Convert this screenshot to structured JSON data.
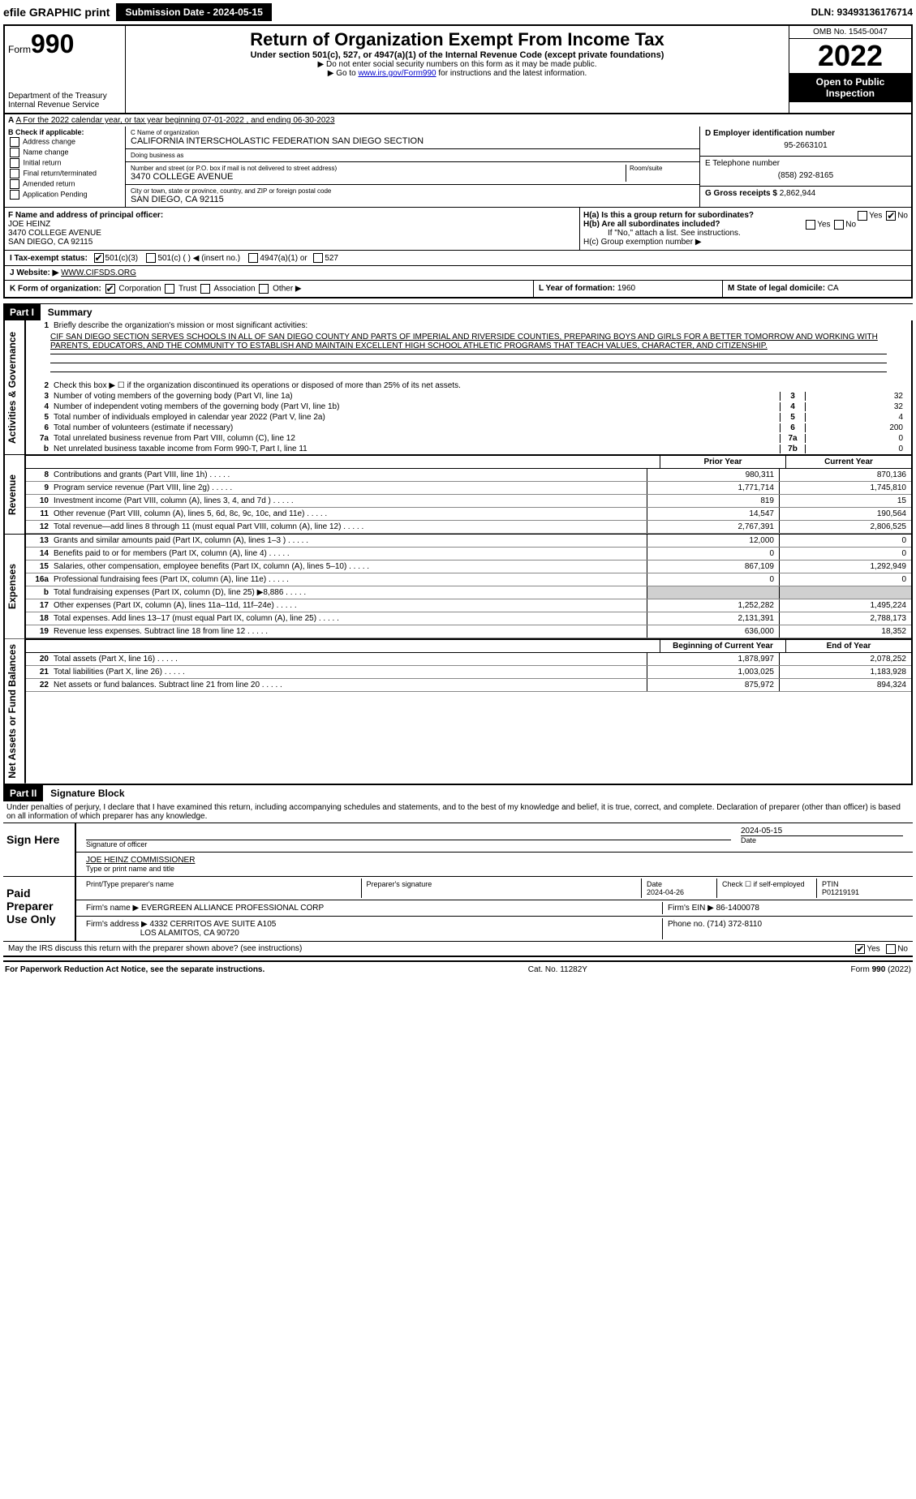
{
  "top": {
    "efile": "efile GRAPHIC print",
    "submission": "Submission Date - 2024-05-15",
    "dln": "DLN: 93493136176714"
  },
  "header": {
    "form": "Form",
    "formNum": "990",
    "dept": "Department of the Treasury Internal Revenue Service",
    "title": "Return of Organization Exempt From Income Tax",
    "sub": "Under section 501(c), 527, or 4947(a)(1) of the Internal Revenue Code (except private foundations)",
    "note1": "▶ Do not enter social security numbers on this form as it may be made public.",
    "note2": "▶ Go to www.irs.gov/Form990 for instructions and the latest information.",
    "irsLink": "www.irs.gov/Form990",
    "omb": "OMB No. 1545-0047",
    "year": "2022",
    "inspect": "Open to Public Inspection"
  },
  "a": {
    "text": "A For the 2022 calendar year, or tax year beginning 07-01-2022   , and ending 06-30-2023"
  },
  "b": {
    "label": "B Check if applicable:",
    "opts": [
      "Address change",
      "Name change",
      "Initial return",
      "Final return/terminated",
      "Amended return",
      "Application Pending"
    ]
  },
  "c": {
    "nameLbl": "C Name of organization",
    "name": "CALIFORNIA INTERSCHOLASTIC FEDERATION SAN DIEGO SECTION",
    "dbaLbl": "Doing business as",
    "dba": "",
    "streetLbl": "Number and street (or P.O. box if mail is not delivered to street address)",
    "street": "3470 COLLEGE AVENUE",
    "roomLbl": "Room/suite",
    "cityLbl": "City or town, state or province, country, and ZIP or foreign postal code",
    "city": "SAN DIEGO, CA  92115"
  },
  "d": {
    "lbl": "D Employer identification number",
    "val": "95-2663101"
  },
  "e": {
    "lbl": "E Telephone number",
    "val": "(858) 292-8165"
  },
  "g": {
    "lbl": "G Gross receipts $",
    "val": "2,862,944"
  },
  "f": {
    "lbl": "F Name and address of principal officer:",
    "name": "JOE HEINZ",
    "addr1": "3470 COLLEGE AVENUE",
    "addr2": "SAN DIEGO, CA  92115"
  },
  "h": {
    "a": "H(a)  Is this a group return for subordinates?",
    "b": "H(b)  Are all subordinates included?",
    "bnote": "If \"No,\" attach a list. See instructions.",
    "c": "H(c)  Group exemption number ▶",
    "yes": "Yes",
    "no": "No"
  },
  "i": {
    "lbl": "I  Tax-exempt status:",
    "o1": "501(c)(3)",
    "o2": "501(c) (  ) ◀ (insert no.)",
    "o3": "4947(a)(1) or",
    "o4": "527"
  },
  "j": {
    "lbl": "J  Website: ▶",
    "val": "WWW.CIFSDS.ORG"
  },
  "k": {
    "lbl": "K Form of organization:",
    "o1": "Corporation",
    "o2": "Trust",
    "o3": "Association",
    "o4": "Other ▶"
  },
  "l": {
    "lbl": "L Year of formation:",
    "val": "1960"
  },
  "m": {
    "lbl": "M State of legal domicile:",
    "val": "CA"
  },
  "parts": {
    "p1": "Part I",
    "p1t": "Summary",
    "p2": "Part II",
    "p2t": "Signature Block"
  },
  "vtabs": {
    "ag": "Activities & Governance",
    "rev": "Revenue",
    "exp": "Expenses",
    "net": "Net Assets or Fund Balances"
  },
  "summary": {
    "l1": "Briefly describe the organization's mission or most significant activities:",
    "mission": "CIF SAN DIEGO SECTION SERVES SCHOOLS IN ALL OF SAN DIEGO COUNTY AND PARTS OF IMPERIAL AND RIVERSIDE COUNTIES, PREPARING BOYS AND GIRLS FOR A BETTER TOMORROW AND WORKING WITH PARENTS, EDUCATORS, AND THE COMMUNITY TO ESTABLISH AND MAINTAIN EXCELLENT HIGH SCHOOL ATHLETIC PROGRAMS THAT TEACH VALUES, CHARACTER, AND CITIZENSHIP.",
    "l2": "Check this box ▶ ☐ if the organization discontinued its operations or disposed of more than 25% of its net assets.",
    "l3": "Number of voting members of the governing body (Part VI, line 1a)",
    "l4": "Number of independent voting members of the governing body (Part VI, line 1b)",
    "l5": "Total number of individuals employed in calendar year 2022 (Part V, line 2a)",
    "l6": "Total number of volunteers (estimate if necessary)",
    "l7a": "Total unrelated business revenue from Part VIII, column (C), line 12",
    "l7b": "Net unrelated business taxable income from Form 990-T, Part I, line 11",
    "v3": "32",
    "v4": "32",
    "v5": "4",
    "v6": "200",
    "v7a": "0",
    "v7b": "0"
  },
  "hdrYears": {
    "prior": "Prior Year",
    "current": "Current Year"
  },
  "revRows": [
    {
      "n": "8",
      "t": "Contributions and grants (Part VIII, line 1h)",
      "p": "980,311",
      "c": "870,136"
    },
    {
      "n": "9",
      "t": "Program service revenue (Part VIII, line 2g)",
      "p": "1,771,714",
      "c": "1,745,810"
    },
    {
      "n": "10",
      "t": "Investment income (Part VIII, column (A), lines 3, 4, and 7d )",
      "p": "819",
      "c": "15"
    },
    {
      "n": "11",
      "t": "Other revenue (Part VIII, column (A), lines 5, 6d, 8c, 9c, 10c, and 11e)",
      "p": "14,547",
      "c": "190,564"
    },
    {
      "n": "12",
      "t": "Total revenue—add lines 8 through 11 (must equal Part VIII, column (A), line 12)",
      "p": "2,767,391",
      "c": "2,806,525"
    }
  ],
  "expRows": [
    {
      "n": "13",
      "t": "Grants and similar amounts paid (Part IX, column (A), lines 1–3 )",
      "p": "12,000",
      "c": "0"
    },
    {
      "n": "14",
      "t": "Benefits paid to or for members (Part IX, column (A), line 4)",
      "p": "0",
      "c": "0"
    },
    {
      "n": "15",
      "t": "Salaries, other compensation, employee benefits (Part IX, column (A), lines 5–10)",
      "p": "867,109",
      "c": "1,292,949"
    },
    {
      "n": "16a",
      "t": "Professional fundraising fees (Part IX, column (A), line 11e)",
      "p": "0",
      "c": "0"
    },
    {
      "n": "b",
      "t": "Total fundraising expenses (Part IX, column (D), line 25) ▶8,886",
      "p": "",
      "c": "",
      "shade": true
    },
    {
      "n": "17",
      "t": "Other expenses (Part IX, column (A), lines 11a–11d, 11f–24e)",
      "p": "1,252,282",
      "c": "1,495,224"
    },
    {
      "n": "18",
      "t": "Total expenses. Add lines 13–17 (must equal Part IX, column (A), line 25)",
      "p": "2,131,391",
      "c": "2,788,173"
    },
    {
      "n": "19",
      "t": "Revenue less expenses. Subtract line 18 from line 12",
      "p": "636,000",
      "c": "18,352"
    }
  ],
  "netHdr": {
    "b": "Beginning of Current Year",
    "e": "End of Year"
  },
  "netRows": [
    {
      "n": "20",
      "t": "Total assets (Part X, line 16)",
      "p": "1,878,997",
      "c": "2,078,252"
    },
    {
      "n": "21",
      "t": "Total liabilities (Part X, line 26)",
      "p": "1,003,025",
      "c": "1,183,928"
    },
    {
      "n": "22",
      "t": "Net assets or fund balances. Subtract line 21 from line 20",
      "p": "875,972",
      "c": "894,324"
    }
  ],
  "sigDecl": "Under penalties of perjury, I declare that I have examined this return, including accompanying schedules and statements, and to the best of my knowledge and belief, it is true, correct, and complete. Declaration of preparer (other than officer) is based on all information of which preparer has any knowledge.",
  "sign": {
    "here": "Sign Here",
    "sigOff": "Signature of officer",
    "date": "Date",
    "dateVal": "2024-05-15",
    "nameTitle": "JOE HEINZ  COMMISSIONER",
    "typeLbl": "Type or print name and title"
  },
  "prep": {
    "label": "Paid Preparer Use Only",
    "h1": "Print/Type preparer's name",
    "h2": "Preparer's signature",
    "h3": "Date",
    "h3v": "2024-04-26",
    "h4": "Check ☐ if self-employed",
    "h5": "PTIN",
    "h5v": "P01219191",
    "firmName": "Firm's name    ▶",
    "firmNameV": "EVERGREEN ALLIANCE PROFESSIONAL CORP",
    "firmEin": "Firm's EIN ▶",
    "firmEinV": "86-1400078",
    "firmAddr": "Firm's address ▶",
    "firmAddrV1": "4332 CERRITOS AVE SUITE A105",
    "firmAddrV2": "LOS ALAMITOS, CA  90720",
    "phone": "Phone no.",
    "phoneV": "(714) 372-8110"
  },
  "may": "May the IRS discuss this return with the preparer shown above? (see instructions)",
  "footer": {
    "pra": "For Paperwork Reduction Act Notice, see the separate instructions.",
    "cat": "Cat. No. 11282Y",
    "form": "Form 990 (2022)"
  },
  "colors": {
    "black": "#000000",
    "link": "#0000cc",
    "shade": "#d0d0d0"
  }
}
